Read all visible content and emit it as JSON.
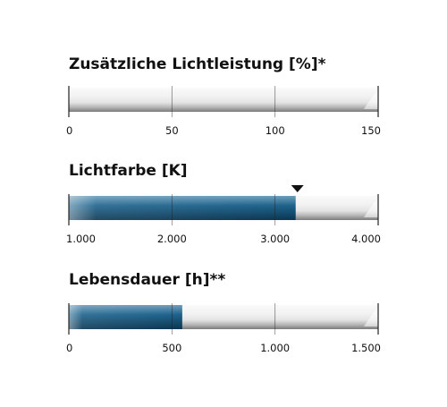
{
  "chart_data": [
    {
      "type": "bar",
      "title": "Zusätzliche Lichtleistung [%]*",
      "min": 0,
      "max": 150,
      "value": 0,
      "ticks": [
        {
          "value": 0,
          "label": "0"
        },
        {
          "value": 50,
          "label": "50"
        },
        {
          "value": 100,
          "label": "100"
        },
        {
          "value": 150,
          "label": "150"
        }
      ]
    },
    {
      "type": "bar",
      "title": "Lichtfarbe [K]",
      "min": 1000,
      "max": 4000,
      "value": 3200,
      "marker": 3200,
      "ticks": [
        {
          "value": 1000,
          "label": "1.000"
        },
        {
          "value": 2000,
          "label": "2.000"
        },
        {
          "value": 3000,
          "label": "3.000"
        },
        {
          "value": 4000,
          "label": "4.000"
        }
      ]
    },
    {
      "type": "bar",
      "title": "Lebensdauer [h]**",
      "min": 0,
      "max": 1500,
      "value": 550,
      "ticks": [
        {
          "value": 0,
          "label": "0"
        },
        {
          "value": 500,
          "label": "500"
        },
        {
          "value": 1000,
          "label": "1.000"
        },
        {
          "value": 1500,
          "label": "1.500"
        }
      ]
    }
  ],
  "colors": {
    "fill_dark": "#0e4561",
    "fill_mid": "#1f6790",
    "fill_light": "#8fb6cc",
    "track_light": "#f4f4f4",
    "track_dark": "#7f7f7f",
    "tick": "#222222",
    "marker": "#111111"
  }
}
